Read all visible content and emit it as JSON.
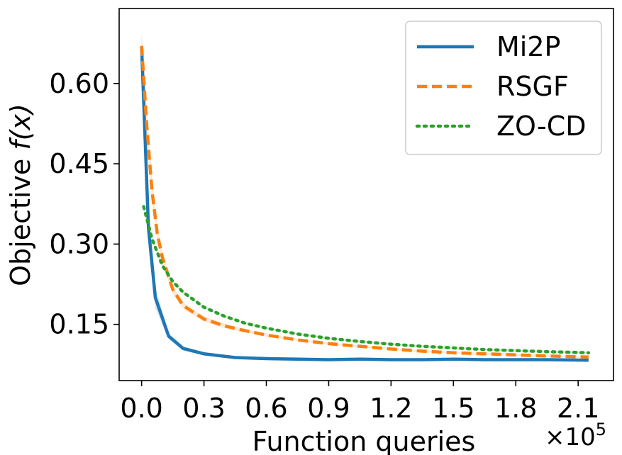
{
  "chart_data": {
    "type": "line",
    "title": "",
    "xlabel": "Function queries",
    "ylabel_prefix": "Objective ",
    "ylabel_math": "f(x)",
    "x_multiplier_label": "×10",
    "x_multiplier_exponent": "5",
    "xlim": [
      -0.108,
      2.27
    ],
    "ylim": [
      0.045,
      0.74
    ],
    "xticks": [
      0.0,
      0.3,
      0.6,
      0.9,
      1.2,
      1.5,
      1.8,
      2.1
    ],
    "xtick_labels": [
      "0.0",
      "0.3",
      "0.6",
      "0.9",
      "1.2",
      "1.5",
      "1.8",
      "2.1"
    ],
    "yticks": [
      0.15,
      0.3,
      0.45,
      0.6
    ],
    "ytick_labels": [
      "0.15",
      "0.30",
      "0.45",
      "0.60"
    ],
    "legend_position": "top-right",
    "series": [
      {
        "name": "Mi2P",
        "color": "#1f77b4",
        "style": "solid",
        "x": [
          0.0,
          0.033,
          0.066,
          0.13,
          0.2,
          0.3,
          0.45,
          0.6,
          0.75,
          0.9,
          1.05,
          1.2,
          1.35,
          1.5,
          1.65,
          1.8,
          1.95,
          2.15
        ],
        "y": [
          0.67,
          0.33,
          0.2,
          0.128,
          0.105,
          0.095,
          0.088,
          0.086,
          0.085,
          0.084,
          0.085,
          0.084,
          0.084,
          0.085,
          0.084,
          0.084,
          0.084,
          0.083
        ],
        "band": [
          0.02,
          0.03,
          0.02,
          0.006,
          0.004,
          0.003,
          0.002,
          0.002,
          0.002,
          0.002,
          0.002,
          0.002,
          0.002,
          0.002,
          0.002,
          0.002,
          0.002,
          0.002
        ]
      },
      {
        "name": "RSGF",
        "color": "#ff7f0e",
        "style": "dashed",
        "x": [
          0.0,
          0.025,
          0.05,
          0.075,
          0.1,
          0.15,
          0.2,
          0.3,
          0.4,
          0.5,
          0.6,
          0.75,
          0.9,
          1.05,
          1.2,
          1.35,
          1.5,
          1.65,
          1.8,
          1.95,
          2.15
        ],
        "y": [
          0.67,
          0.52,
          0.4,
          0.32,
          0.275,
          0.215,
          0.185,
          0.16,
          0.147,
          0.138,
          0.13,
          0.121,
          0.114,
          0.109,
          0.104,
          0.1,
          0.097,
          0.095,
          0.093,
          0.091,
          0.089
        ],
        "band": [
          0.03,
          0.03,
          0.025,
          0.015,
          0.012,
          0.008,
          0.006,
          0.005,
          0.004,
          0.003,
          0.003,
          0.002,
          0.002,
          0.002,
          0.002,
          0.002,
          0.002,
          0.002,
          0.002,
          0.002,
          0.002
        ]
      },
      {
        "name": "ZO-CD",
        "color": "#2ca02c",
        "style": "dotted",
        "x": [
          0.01,
          0.05,
          0.1,
          0.15,
          0.2,
          0.3,
          0.4,
          0.5,
          0.6,
          0.75,
          0.9,
          1.05,
          1.2,
          1.35,
          1.5,
          1.65,
          1.8,
          1.95,
          2.15
        ],
        "y": [
          0.37,
          0.31,
          0.26,
          0.23,
          0.21,
          0.182,
          0.165,
          0.152,
          0.143,
          0.132,
          0.124,
          0.118,
          0.113,
          0.109,
          0.106,
          0.103,
          0.101,
          0.099,
          0.097
        ],
        "band": [
          0.004,
          0.004,
          0.003,
          0.003,
          0.003,
          0.002,
          0.002,
          0.002,
          0.002,
          0.002,
          0.002,
          0.002,
          0.002,
          0.002,
          0.002,
          0.002,
          0.002,
          0.002,
          0.002
        ]
      }
    ]
  }
}
